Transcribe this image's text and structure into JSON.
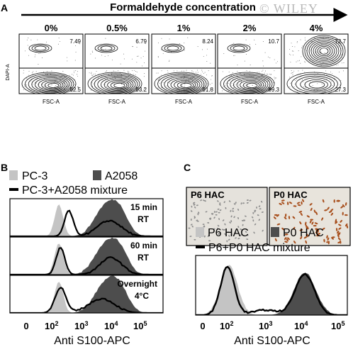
{
  "panelA": {
    "letter": "A",
    "title": "Formaldehyde concentration",
    "ylabel": "DAPI-A",
    "xlabel": "FSC-A",
    "plots": [
      {
        "conc": "0%",
        "upper": "7.49",
        "lower": "92.5"
      },
      {
        "conc": "0.5%",
        "upper": "6.79",
        "lower": "93.2"
      },
      {
        "conc": "1%",
        "upper": "8.24",
        "lower": "91.8"
      },
      {
        "conc": "2%",
        "upper": "10.7",
        "lower": "89.3"
      },
      {
        "conc": "4%",
        "upper": "72.7",
        "lower": "27.3"
      }
    ]
  },
  "panelB": {
    "letter": "B",
    "legend": [
      {
        "label": "PC-3",
        "swatch": "#c4c4c4"
      },
      {
        "label": "A2058",
        "swatch": "#4d4d4d"
      },
      {
        "label": "PC-3+A2058 mixture",
        "swatch": "#000000"
      }
    ],
    "histograms": [
      {
        "line1": "15 min",
        "line2": "RT"
      },
      {
        "line1": "60 min",
        "line2": "RT"
      },
      {
        "line1": "Overnight",
        "line2": "4°C"
      }
    ],
    "xlabel": "Anti S100-APC",
    "ticks": [
      {
        "base": "0",
        "exp": ""
      },
      {
        "base": "10",
        "exp": "2"
      },
      {
        "base": "10",
        "exp": "3"
      },
      {
        "base": "10",
        "exp": "4"
      },
      {
        "base": "10",
        "exp": "5"
      }
    ]
  },
  "panelC": {
    "letter": "C",
    "images": [
      {
        "label": "P6 HAC"
      },
      {
        "label": "P0 HAC"
      }
    ],
    "legend": [
      {
        "label": "P6 HAC",
        "swatch": "#c4c4c4"
      },
      {
        "label": "P0 HAC",
        "swatch": "#4d4d4d"
      },
      {
        "label": "P6+P0 HAC mixture",
        "swatch": "#000000"
      }
    ],
    "xlabel": "Anti S100-APC",
    "ticks": [
      {
        "base": "0",
        "exp": ""
      },
      {
        "base": "10",
        "exp": "2"
      },
      {
        "base": "10",
        "exp": "3"
      },
      {
        "base": "10",
        "exp": "4"
      },
      {
        "base": "10",
        "exp": "5"
      }
    ]
  },
  "watermark": "© WILEY",
  "colors": {
    "light_fill": "#c4c4c4",
    "dark_fill": "#4d4d4d",
    "line": "#000000",
    "stain": "#a8501e"
  }
}
